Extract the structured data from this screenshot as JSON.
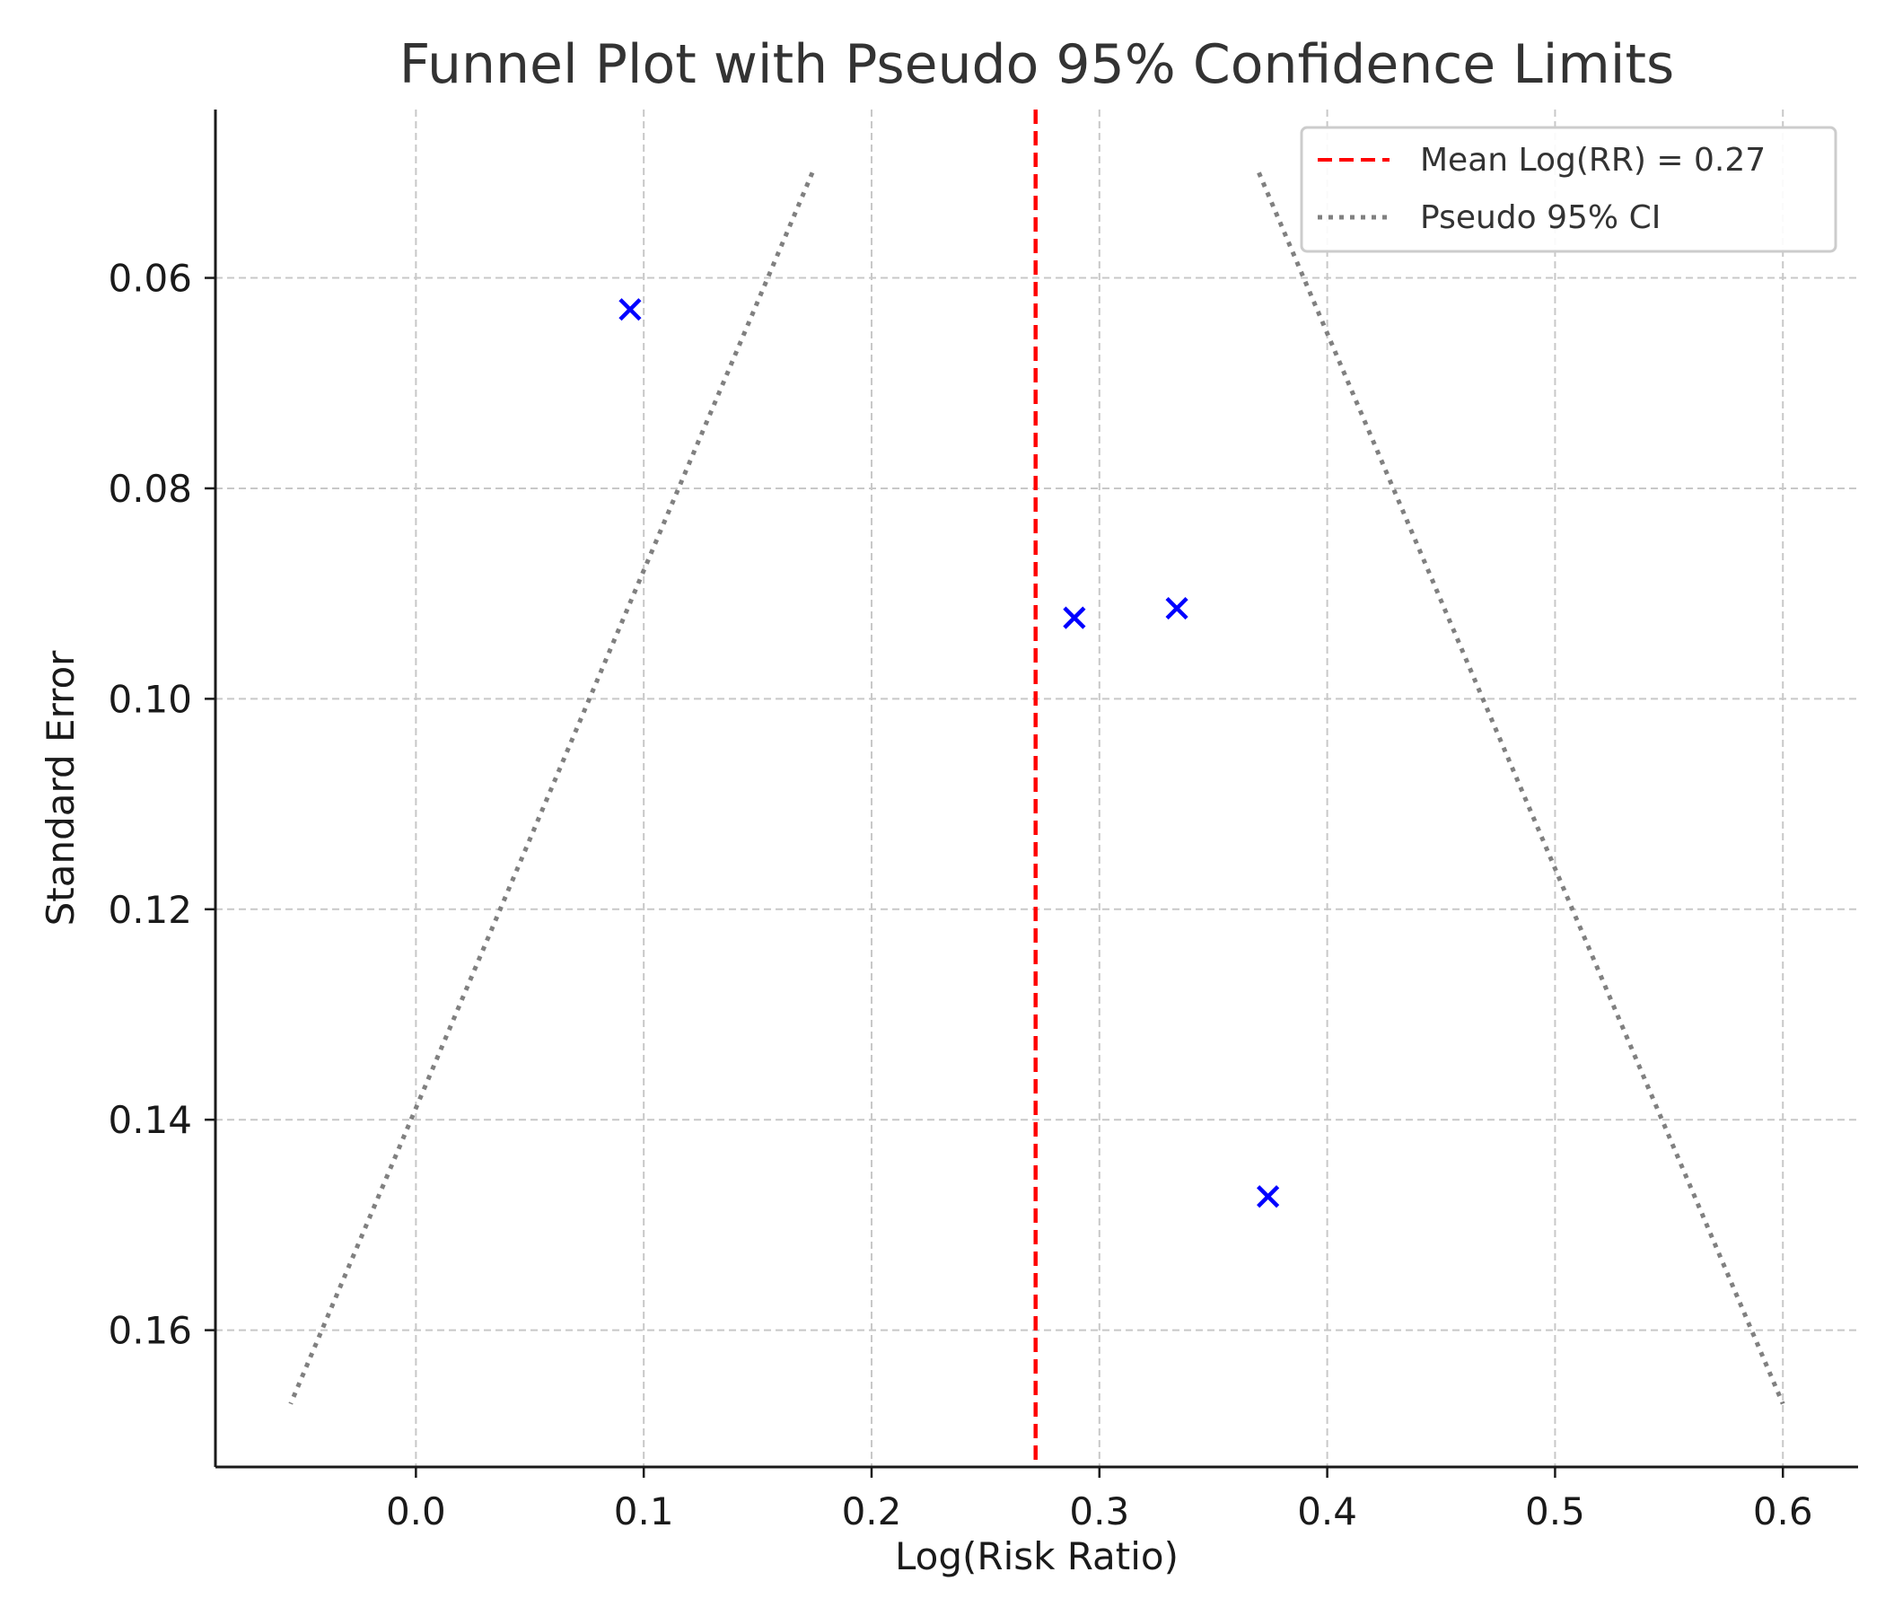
{
  "chart_data": {
    "type": "scatter",
    "title": "Funnel Plot with Pseudo 95% Confidence Limits",
    "xlabel": "Log(Risk Ratio)",
    "ylabel": "Standard Error",
    "xlim": [
      -0.088,
      0.633
    ],
    "ylim": [
      0.044,
      0.173
    ],
    "y_inverted": true,
    "xticks": [
      0.0,
      0.1,
      0.2,
      0.3,
      0.4,
      0.5,
      0.6
    ],
    "xtick_labels": [
      "0.0",
      "0.1",
      "0.2",
      "0.3",
      "0.4",
      "0.5",
      "0.6"
    ],
    "yticks": [
      0.06,
      0.08,
      0.1,
      0.12,
      0.14,
      0.16
    ],
    "ytick_labels": [
      "0.06",
      "0.08",
      "0.10",
      "0.12",
      "0.14",
      "0.16"
    ],
    "grid": true,
    "legend_position": "top-right",
    "points": [
      {
        "x": 0.094,
        "y": 0.063
      },
      {
        "x": 0.289,
        "y": 0.0923
      },
      {
        "x": 0.334,
        "y": 0.0914
      },
      {
        "x": 0.374,
        "y": 0.1473
      }
    ],
    "marker": "x",
    "marker_color": "#0000ff",
    "mean_line": {
      "x": 0.272,
      "label": "Mean Log(RR) = 0.27",
      "color": "#ff0000",
      "style": "dashed"
    },
    "ci_lines": {
      "label": "Pseudo 95% CI",
      "color": "#808080",
      "style": "dotted",
      "left": [
        {
          "x": 0.174,
          "y": 0.05
        },
        {
          "x": -0.055,
          "y": 0.167
        }
      ],
      "right": [
        {
          "x": 0.37,
          "y": 0.05
        },
        {
          "x": 0.6,
          "y": 0.167
        }
      ]
    }
  }
}
